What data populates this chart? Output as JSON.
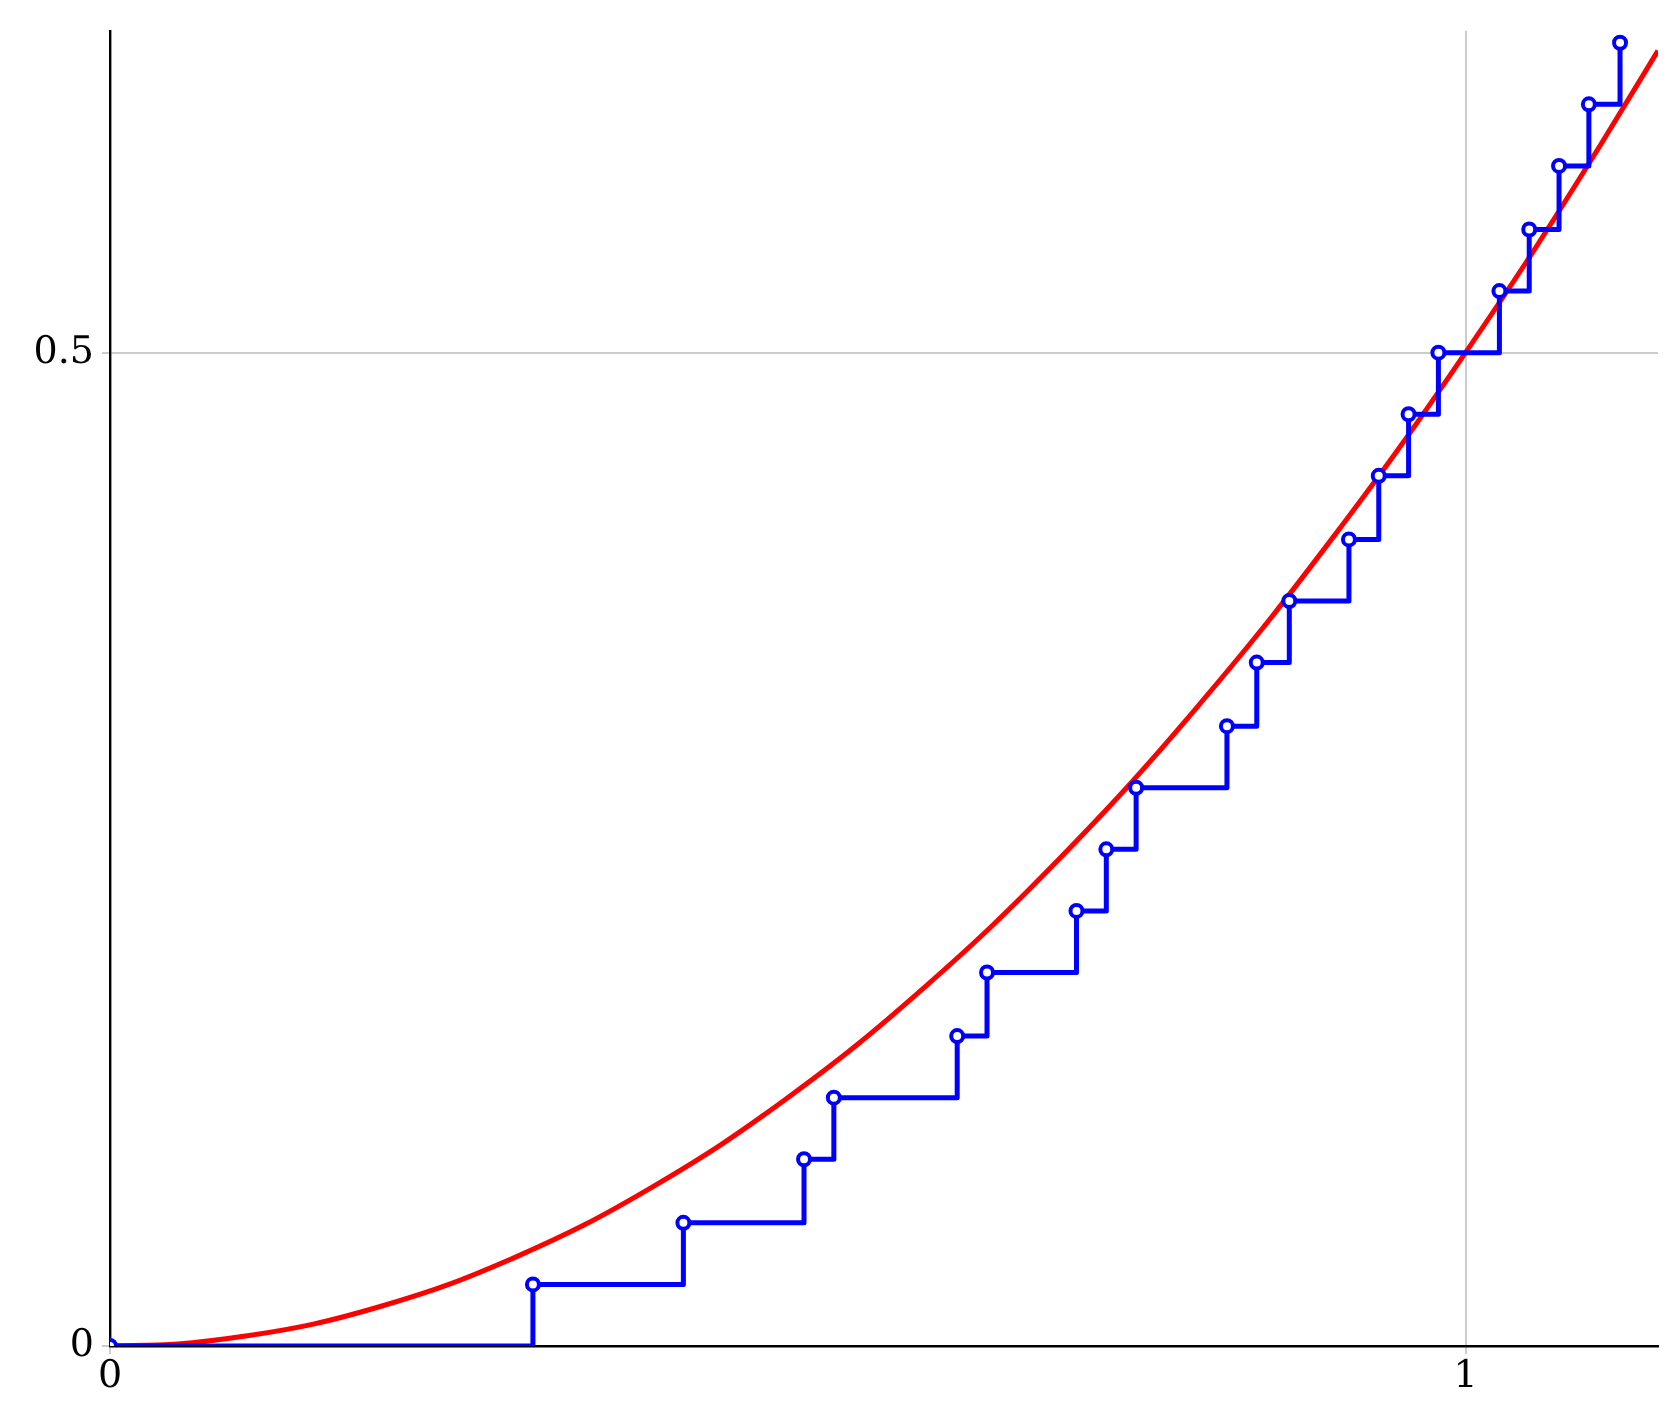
{
  "chart_data": {
    "type": "step",
    "xlim": [
      0,
      1.142
    ],
    "ylim": [
      0,
      0.662
    ],
    "xticks": [
      0,
      1
    ],
    "yticks": [
      0,
      0.5
    ],
    "grid": true,
    "legend": false,
    "series": [
      {
        "type": "step",
        "color": "#0000ff",
        "marker": "circle",
        "x": [
          0,
          0.312,
          0.423,
          0.512,
          0.534,
          0.625,
          0.647,
          0.713,
          0.735,
          0.757,
          0.824,
          0.846,
          0.87,
          0.914,
          0.936,
          0.958,
          0.98,
          1.025,
          1.047,
          1.069,
          1.091,
          1.114
        ],
        "values": [
          0,
          0.031,
          0.062,
          0.094,
          0.125,
          0.156,
          0.188,
          0.219,
          0.25,
          0.281,
          0.312,
          0.344,
          0.375,
          0.406,
          0.438,
          0.469,
          0.5,
          0.531,
          0.562,
          0.594,
          0.625,
          0.656
        ]
      },
      {
        "type": "line",
        "color": "#ff0000",
        "marker": "none",
        "x": [
          0,
          0.05,
          0.1,
          0.15,
          0.2,
          0.25,
          0.3,
          0.35,
          0.4,
          0.45,
          0.5,
          0.55,
          0.6,
          0.65,
          0.7,
          0.75,
          0.8,
          0.85,
          0.9,
          0.95,
          1,
          1.05,
          1.1,
          1.142
        ],
        "values": [
          0,
          0.001,
          0.005,
          0.011,
          0.02,
          0.031,
          0.045,
          0.061,
          0.08,
          0.101,
          0.125,
          0.151,
          0.18,
          0.211,
          0.245,
          0.281,
          0.32,
          0.361,
          0.405,
          0.451,
          0.5,
          0.551,
          0.605,
          0.652
        ]
      }
    ]
  }
}
